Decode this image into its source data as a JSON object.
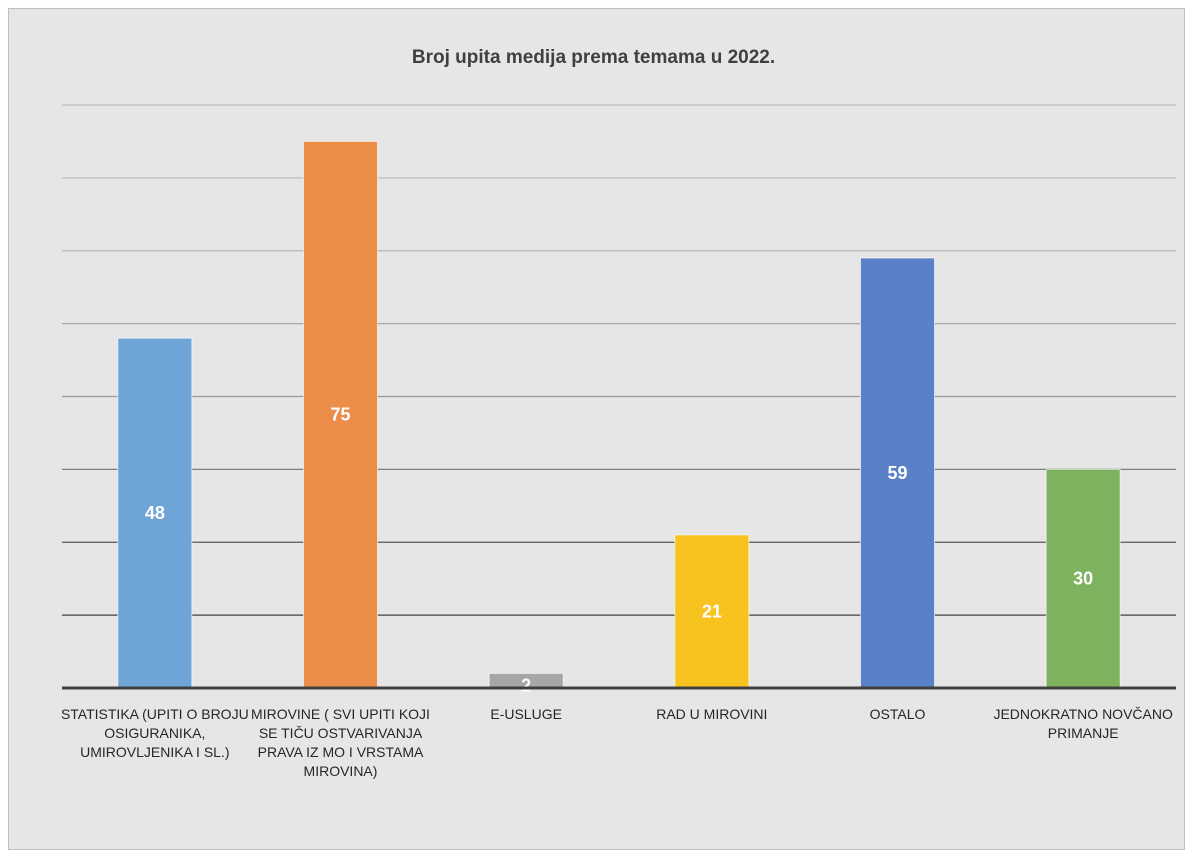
{
  "chart_data": {
    "type": "bar",
    "title": "Broj upita medija prema temama u 2022.",
    "xlabel": "",
    "ylabel": "",
    "ylim": [
      0,
      80
    ],
    "grid": true,
    "categories": [
      "STATISTIKA (UPITI O BROJU OSIGURANIKA, UMIROVLJENIKA I SL.)",
      "MIROVINE ( SVI UPITI KOJI SE TIČU OSTVARIVANJA PRAVA IZ MO I VRSTAMA MIROVINA)",
      "E-USLUGE",
      "RAD U MIROVINI",
      "OSTALO",
      "JEDNOKRATNO NOVČANO PRIMANJE"
    ],
    "values": [
      48,
      75,
      2,
      21,
      59,
      30
    ],
    "colors": [
      "#6ea4d6",
      "#ec8d4a",
      "#a6a6a6",
      "#f8c31f",
      "#5a80c8",
      "#7eb25e"
    ],
    "data_labels": [
      "48",
      "75",
      "2",
      "21",
      "59",
      "30"
    ]
  }
}
